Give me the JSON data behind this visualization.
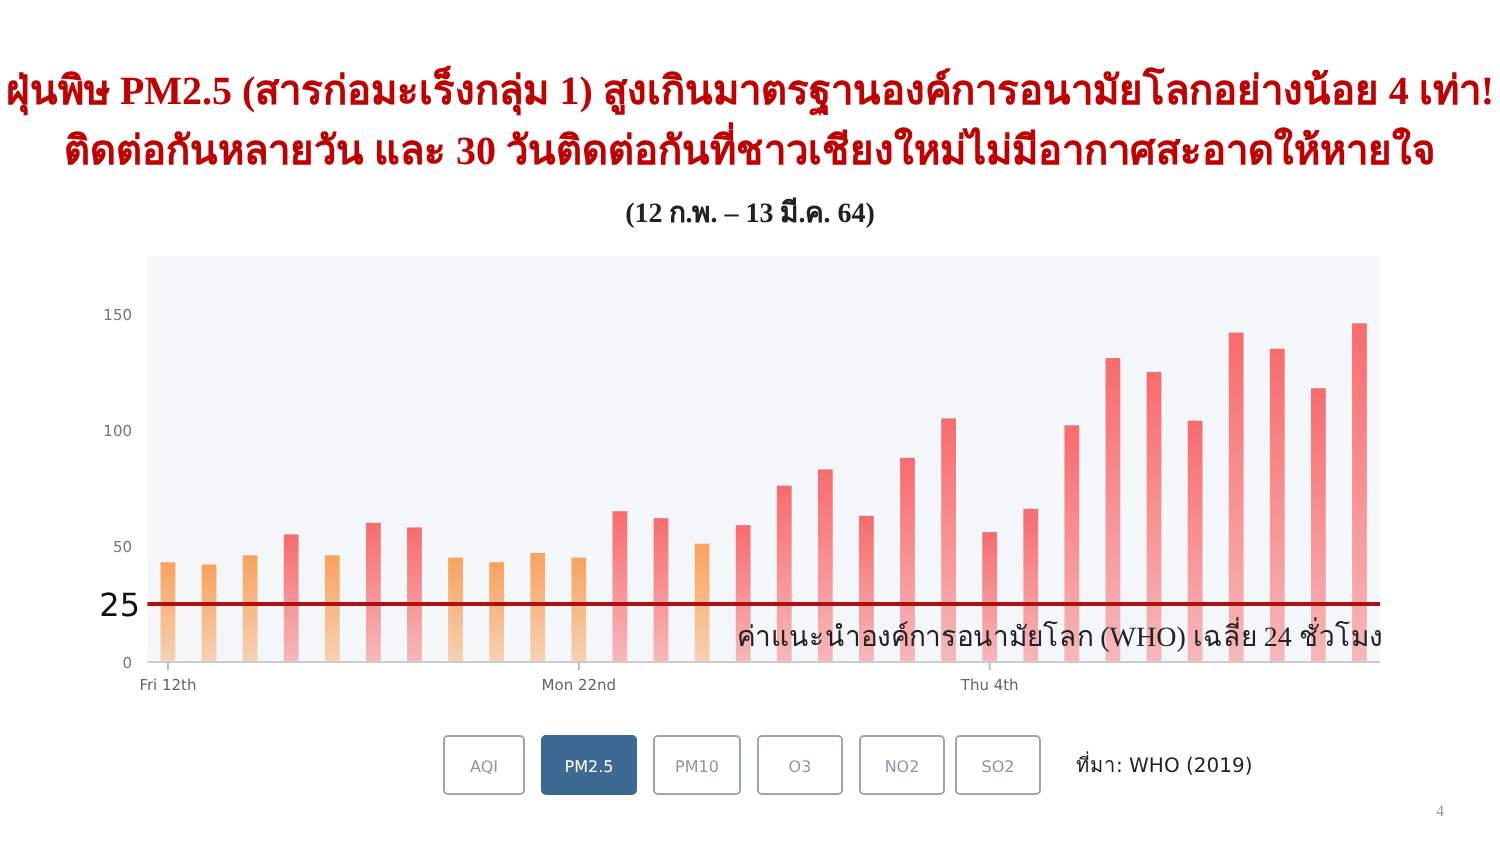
{
  "chart_data": {
    "type": "bar",
    "title": "ฝุ่นพิษ PM2.5 (สารก่อมะเร็งกลุ่ม 1) สูงเกินมาตรฐานองค์การอนามัยโลกอย่างน้อย 4 เท่า!\nติดต่อกันหลายวัน และ 30 วันติดต่อกันที่ชาวเชียงใหม่ไม่มีอากาศสะอาดให้หายใจ",
    "subtitle": "(12 ก.พ. – 13 มี.ค. 64)",
    "categories": [
      "Fri 12th",
      null,
      null,
      null,
      null,
      null,
      null,
      null,
      null,
      null,
      "Mon 22nd",
      null,
      null,
      null,
      null,
      null,
      null,
      null,
      null,
      null,
      "Thu 4th",
      null,
      null,
      null,
      null,
      null,
      null,
      null,
      null,
      null
    ],
    "values": [
      43,
      42,
      46,
      55,
      46,
      60,
      58,
      45,
      43,
      47,
      45,
      65,
      62,
      51,
      59,
      76,
      83,
      63,
      88,
      105,
      56,
      66,
      102,
      131,
      125,
      104,
      142,
      135,
      118,
      146
    ],
    "colors": [
      "#f9a25e",
      "#f9a25e",
      "#f9a25e",
      "#f86b6e",
      "#f9a25e",
      "#f86b6e",
      "#f86b6e",
      "#f9a25e",
      "#f9a25e",
      "#f9a25e",
      "#f9a25e",
      "#f86b6e",
      "#f86b6e",
      "#f9a25e",
      "#f86b6e",
      "#f86b6e",
      "#f86b6e",
      "#f86b6e",
      "#f86b6e",
      "#f86b6e",
      "#f86b6e",
      "#f86b6e",
      "#f86b6e",
      "#f86b6e",
      "#f86b6e",
      "#f86b6e",
      "#f86b6e",
      "#f86b6e",
      "#f86b6e",
      "#f86b6e"
    ],
    "ylim": [
      0,
      175
    ],
    "yticks": [
      0,
      50,
      100,
      150
    ],
    "ref_lines": [
      {
        "axis": "y",
        "value": 25,
        "label": "ค่าแนะนำองค์การอนามัยโลก (WHO) เฉลี่ย 24 ชั่วโมง",
        "color": "#b01010",
        "line_style": "solid"
      }
    ],
    "annotations": [
      "25",
      "AQI",
      "PM2.5",
      "PM10",
      "O3",
      "NO2",
      "SO2",
      "ที่มา: WHO (2019)",
      "4"
    ],
    "grid": false
  }
}
